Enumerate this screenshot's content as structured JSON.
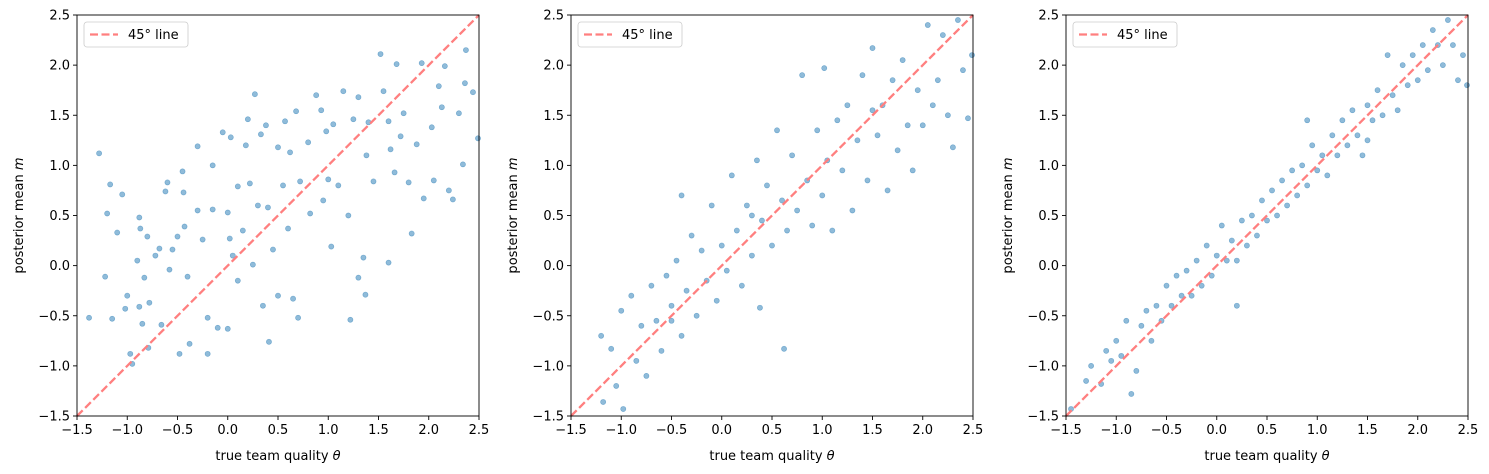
{
  "chart_data": [
    {
      "type": "scatter",
      "xlabel": "true team quality",
      "xlabel_symbol": "θ",
      "ylabel": "posterior mean",
      "ylabel_symbol": "m",
      "xlim": [
        -1.5,
        2.5
      ],
      "ylim": [
        -1.5,
        2.5
      ],
      "xticks": [
        "−1.5",
        "−1.0",
        "−0.5",
        "0.0",
        "0.5",
        "1.0",
        "1.5",
        "2.0",
        "2.5"
      ],
      "yticks": [
        "−1.5",
        "−1.0",
        "−0.5",
        "0.0",
        "0.5",
        "1.0",
        "1.5",
        "2.0",
        "2.5"
      ],
      "legend": {
        "label": "45° line",
        "placement": "top-left"
      },
      "grid": false,
      "point_color": "#1f77b4",
      "line_color": "#ff7f7f",
      "points": [
        [
          -1.38,
          -0.52
        ],
        [
          -1.28,
          1.12
        ],
        [
          -1.2,
          0.52
        ],
        [
          -1.17,
          0.81
        ],
        [
          -1.22,
          -0.11
        ],
        [
          -1.15,
          -0.53
        ],
        [
          -1.1,
          0.33
        ],
        [
          -1.05,
          0.71
        ],
        [
          -1.02,
          -0.43
        ],
        [
          -1.0,
          -0.3
        ],
        [
          -0.97,
          -0.88
        ],
        [
          -0.95,
          -0.98
        ],
        [
          -0.9,
          0.05
        ],
        [
          -0.88,
          0.48
        ],
        [
          -0.87,
          0.37
        ],
        [
          -0.88,
          -0.41
        ],
        [
          -0.85,
          -0.58
        ],
        [
          -0.83,
          -0.12
        ],
        [
          -0.8,
          0.29
        ],
        [
          -0.79,
          -0.82
        ],
        [
          -0.78,
          -0.37
        ],
        [
          -0.72,
          0.1
        ],
        [
          -0.68,
          0.17
        ],
        [
          -0.66,
          -0.59
        ],
        [
          -0.62,
          0.74
        ],
        [
          -0.6,
          0.83
        ],
        [
          -0.58,
          -0.04
        ],
        [
          -0.55,
          0.16
        ],
        [
          -0.5,
          0.29
        ],
        [
          -0.48,
          -0.88
        ],
        [
          -0.45,
          0.94
        ],
        [
          -0.44,
          0.73
        ],
        [
          -0.43,
          0.39
        ],
        [
          -0.4,
          -0.11
        ],
        [
          -0.38,
          -0.78
        ],
        [
          -0.3,
          1.19
        ],
        [
          -0.3,
          0.55
        ],
        [
          -0.25,
          0.26
        ],
        [
          -0.2,
          -0.52
        ],
        [
          -0.15,
          1.0
        ],
        [
          -0.15,
          0.56
        ],
        [
          -0.1,
          -0.62
        ],
        [
          -0.05,
          1.33
        ],
        [
          0.0,
          0.53
        ],
        [
          0.0,
          -0.63
        ],
        [
          0.02,
          0.27
        ],
        [
          0.03,
          1.28
        ],
        [
          0.05,
          0.1
        ],
        [
          0.1,
          -0.15
        ],
        [
          0.1,
          0.79
        ],
        [
          0.15,
          0.35
        ],
        [
          0.18,
          1.2
        ],
        [
          0.2,
          1.46
        ],
        [
          0.22,
          0.82
        ],
        [
          0.25,
          0.01
        ],
        [
          0.27,
          1.71
        ],
        [
          0.3,
          0.6
        ],
        [
          0.33,
          1.31
        ],
        [
          0.35,
          -0.4
        ],
        [
          0.38,
          1.4
        ],
        [
          0.4,
          0.58
        ],
        [
          0.41,
          -0.76
        ],
        [
          0.45,
          0.16
        ],
        [
          0.5,
          1.18
        ],
        [
          0.55,
          0.8
        ],
        [
          0.57,
          1.44
        ],
        [
          0.6,
          0.37
        ],
        [
          0.62,
          1.13
        ],
        [
          0.65,
          -0.33
        ],
        [
          0.68,
          1.54
        ],
        [
          0.7,
          -0.52
        ],
        [
          0.72,
          0.84
        ],
        [
          0.8,
          1.23
        ],
        [
          0.82,
          0.52
        ],
        [
          0.88,
          1.7
        ],
        [
          0.93,
          1.55
        ],
        [
          0.95,
          0.65
        ],
        [
          0.98,
          1.34
        ],
        [
          1.0,
          0.86
        ],
        [
          1.03,
          0.19
        ],
        [
          1.05,
          1.41
        ],
        [
          1.1,
          0.8
        ],
        [
          1.15,
          1.74
        ],
        [
          1.2,
          0.5
        ],
        [
          1.22,
          -0.54
        ],
        [
          1.25,
          1.46
        ],
        [
          1.3,
          1.68
        ],
        [
          1.3,
          -0.12
        ],
        [
          1.35,
          0.08
        ],
        [
          1.38,
          1.1
        ],
        [
          1.4,
          1.43
        ],
        [
          1.45,
          0.84
        ],
        [
          1.52,
          2.11
        ],
        [
          1.55,
          1.74
        ],
        [
          1.6,
          1.44
        ],
        [
          1.62,
          1.16
        ],
        [
          1.66,
          0.93
        ],
        [
          1.68,
          2.01
        ],
        [
          1.72,
          1.29
        ],
        [
          1.75,
          1.52
        ],
        [
          1.8,
          0.83
        ],
        [
          1.83,
          0.32
        ],
        [
          1.88,
          1.21
        ],
        [
          1.93,
          2.02
        ],
        [
          1.95,
          0.67
        ],
        [
          2.03,
          1.38
        ],
        [
          2.05,
          0.85
        ],
        [
          2.1,
          1.79
        ],
        [
          2.13,
          1.58
        ],
        [
          2.16,
          1.99
        ],
        [
          2.2,
          0.75
        ],
        [
          2.24,
          0.66
        ],
        [
          2.3,
          1.52
        ],
        [
          2.34,
          1.01
        ],
        [
          2.36,
          1.82
        ],
        [
          2.37,
          2.15
        ],
        [
          2.44,
          1.73
        ],
        [
          2.49,
          1.27
        ],
        [
          -0.2,
          -0.88
        ],
        [
          0.5,
          -0.3
        ],
        [
          1.6,
          0.03
        ],
        [
          1.37,
          -0.29
        ]
      ]
    },
    {
      "type": "scatter",
      "xlabel": "true team quality",
      "xlabel_symbol": "θ",
      "ylabel": "posterior mean",
      "ylabel_symbol": "m",
      "xlim": [
        -1.5,
        2.5
      ],
      "ylim": [
        -1.5,
        2.5
      ],
      "xticks": [
        "−1.5",
        "−1.0",
        "−0.5",
        "0.0",
        "0.5",
        "1.0",
        "1.5",
        "2.0",
        "2.5"
      ],
      "yticks": [
        "−1.5",
        "−1.0",
        "−0.5",
        "0.0",
        "0.5",
        "1.0",
        "1.5",
        "2.0",
        "2.5"
      ],
      "legend": {
        "label": "45° line",
        "placement": "top-left"
      },
      "grid": false,
      "point_color": "#1f77b4",
      "line_color": "#ff7f7f",
      "points": [
        [
          -1.2,
          -0.7
        ],
        [
          -1.18,
          -1.36
        ],
        [
          -1.1,
          -0.83
        ],
        [
          -1.05,
          -1.2
        ],
        [
          -1.0,
          -0.45
        ],
        [
          -0.98,
          -1.43
        ],
        [
          -0.9,
          -0.3
        ],
        [
          -0.85,
          -0.95
        ],
        [
          -0.8,
          -0.6
        ],
        [
          -0.75,
          -1.1
        ],
        [
          -0.7,
          -0.2
        ],
        [
          -0.65,
          -0.55
        ],
        [
          -0.6,
          -0.85
        ],
        [
          -0.55,
          -0.1
        ],
        [
          -0.5,
          -0.4
        ],
        [
          -0.45,
          0.05
        ],
        [
          -0.4,
          -0.7
        ],
        [
          -0.4,
          0.7
        ],
        [
          -0.35,
          -0.25
        ],
        [
          -0.3,
          0.3
        ],
        [
          -0.25,
          -0.5
        ],
        [
          -0.2,
          0.15
        ],
        [
          -0.15,
          -0.15
        ],
        [
          -0.1,
          0.6
        ],
        [
          -0.05,
          -0.35
        ],
        [
          0.0,
          0.2
        ],
        [
          0.05,
          -0.05
        ],
        [
          0.1,
          0.9
        ],
        [
          0.15,
          0.35
        ],
        [
          0.2,
          -0.2
        ],
        [
          0.25,
          0.6
        ],
        [
          0.3,
          0.1
        ],
        [
          0.35,
          1.05
        ],
        [
          0.38,
          -0.42
        ],
        [
          0.4,
          0.45
        ],
        [
          0.45,
          0.8
        ],
        [
          0.5,
          0.2
        ],
        [
          0.55,
          1.35
        ],
        [
          0.6,
          0.65
        ],
        [
          0.62,
          -0.83
        ],
        [
          0.65,
          0.35
        ],
        [
          0.7,
          1.1
        ],
        [
          0.75,
          0.55
        ],
        [
          0.8,
          1.9
        ],
        [
          0.85,
          0.85
        ],
        [
          0.9,
          0.4
        ],
        [
          0.95,
          1.35
        ],
        [
          1.0,
          0.7
        ],
        [
          1.02,
          1.97
        ],
        [
          1.05,
          1.05
        ],
        [
          1.1,
          0.35
        ],
        [
          1.15,
          1.45
        ],
        [
          1.2,
          0.95
        ],
        [
          1.25,
          1.6
        ],
        [
          1.3,
          0.55
        ],
        [
          1.35,
          1.25
        ],
        [
          1.4,
          1.9
        ],
        [
          1.45,
          0.85
        ],
        [
          1.5,
          2.17
        ],
        [
          1.55,
          1.3
        ],
        [
          1.6,
          1.6
        ],
        [
          1.65,
          0.75
        ],
        [
          1.7,
          1.85
        ],
        [
          1.75,
          1.15
        ],
        [
          1.8,
          2.05
        ],
        [
          1.85,
          1.4
        ],
        [
          1.9,
          0.95
        ],
        [
          1.95,
          1.75
        ],
        [
          2.0,
          1.4
        ],
        [
          2.05,
          2.4
        ],
        [
          2.1,
          1.6
        ],
        [
          2.15,
          1.85
        ],
        [
          2.2,
          2.3
        ],
        [
          2.25,
          1.5
        ],
        [
          2.3,
          1.18
        ],
        [
          2.35,
          2.45
        ],
        [
          2.4,
          1.95
        ],
        [
          2.45,
          1.47
        ],
        [
          2.49,
          2.1
        ],
        [
          1.5,
          1.55
        ],
        [
          0.3,
          0.5
        ],
        [
          -0.5,
          -0.55
        ]
      ]
    },
    {
      "type": "scatter",
      "xlabel": "true team quality",
      "xlabel_symbol": "θ",
      "ylabel": "posterior mean",
      "ylabel_symbol": "m",
      "xlim": [
        -1.5,
        2.5
      ],
      "ylim": [
        -1.5,
        2.5
      ],
      "xticks": [
        "−1.5",
        "−1.0",
        "−0.5",
        "0.0",
        "0.5",
        "1.0",
        "1.5",
        "2.0",
        "2.5"
      ],
      "yticks": [
        "−1.5",
        "−1.0",
        "−0.5",
        "0.0",
        "0.5",
        "1.0",
        "1.5",
        "2.0",
        "2.5"
      ],
      "legend": {
        "label": "45° line",
        "placement": "top-left"
      },
      "grid": false,
      "point_color": "#1f77b4",
      "line_color": "#ff7f7f",
      "points": [
        [
          -1.45,
          -1.43
        ],
        [
          -1.3,
          -1.15
        ],
        [
          -1.25,
          -1.0
        ],
        [
          -1.15,
          -1.18
        ],
        [
          -1.1,
          -0.85
        ],
        [
          -1.05,
          -0.95
        ],
        [
          -1.0,
          -0.75
        ],
        [
          -0.95,
          -0.9
        ],
        [
          -0.9,
          -0.55
        ],
        [
          -0.85,
          -1.28
        ],
        [
          -0.8,
          -1.05
        ],
        [
          -0.75,
          -0.6
        ],
        [
          -0.7,
          -0.45
        ],
        [
          -0.65,
          -0.75
        ],
        [
          -0.6,
          -0.4
        ],
        [
          -0.55,
          -0.55
        ],
        [
          -0.5,
          -0.2
        ],
        [
          -0.45,
          -0.4
        ],
        [
          -0.4,
          -0.1
        ],
        [
          -0.35,
          -0.3
        ],
        [
          -0.3,
          -0.05
        ],
        [
          -0.25,
          -0.3
        ],
        [
          -0.2,
          0.05
        ],
        [
          -0.15,
          -0.2
        ],
        [
          -0.1,
          0.2
        ],
        [
          -0.05,
          -0.1
        ],
        [
          0.0,
          0.1
        ],
        [
          0.05,
          0.4
        ],
        [
          0.1,
          0.05
        ],
        [
          0.15,
          0.25
        ],
        [
          0.2,
          0.05
        ],
        [
          0.25,
          0.45
        ],
        [
          0.3,
          0.2
        ],
        [
          0.35,
          0.5
        ],
        [
          0.4,
          0.3
        ],
        [
          0.45,
          0.65
        ],
        [
          0.5,
          0.45
        ],
        [
          0.55,
          0.75
        ],
        [
          0.6,
          0.5
        ],
        [
          0.65,
          0.85
        ],
        [
          0.7,
          0.6
        ],
        [
          0.75,
          0.95
        ],
        [
          0.8,
          0.7
        ],
        [
          0.85,
          1.0
        ],
        [
          0.9,
          0.8
        ],
        [
          0.95,
          1.2
        ],
        [
          1.0,
          0.95
        ],
        [
          1.05,
          1.1
        ],
        [
          1.1,
          0.9
        ],
        [
          1.15,
          1.3
        ],
        [
          1.2,
          1.1
        ],
        [
          1.25,
          1.45
        ],
        [
          1.3,
          1.2
        ],
        [
          1.35,
          1.55
        ],
        [
          1.4,
          1.3
        ],
        [
          1.45,
          1.1
        ],
        [
          1.5,
          1.6
        ],
        [
          1.55,
          1.45
        ],
        [
          1.6,
          1.75
        ],
        [
          1.65,
          1.5
        ],
        [
          1.7,
          2.1
        ],
        [
          1.75,
          1.7
        ],
        [
          1.8,
          1.55
        ],
        [
          1.85,
          2.0
        ],
        [
          1.9,
          1.8
        ],
        [
          1.95,
          2.1
        ],
        [
          2.0,
          1.85
        ],
        [
          2.05,
          2.2
        ],
        [
          2.1,
          1.95
        ],
        [
          2.15,
          2.35
        ],
        [
          2.2,
          2.2
        ],
        [
          2.25,
          2.0
        ],
        [
          2.3,
          2.45
        ],
        [
          2.35,
          2.2
        ],
        [
          2.4,
          1.85
        ],
        [
          2.45,
          2.1
        ],
        [
          2.49,
          1.8
        ],
        [
          0.2,
          -0.4
        ],
        [
          1.5,
          1.25
        ],
        [
          0.9,
          1.45
        ]
      ]
    }
  ]
}
